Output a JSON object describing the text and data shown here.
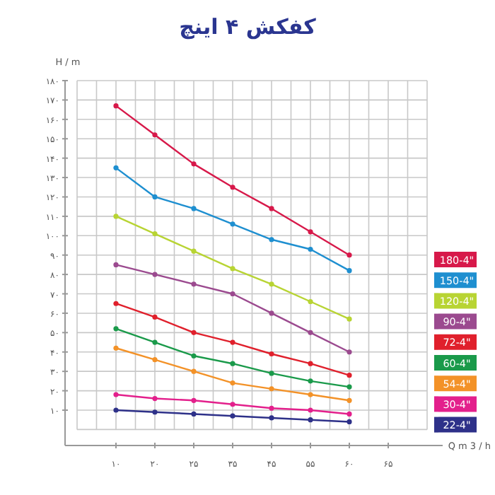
{
  "chart_data": {
    "type": "line",
    "title": "کفکش ۴ اینچ",
    "xlabel": "Q m 3 / h",
    "ylabel": "H / m",
    "categories": [
      "۱۰",
      "۲۰",
      "۲۵",
      "۳۵",
      "۴۵",
      "۵۵",
      "۶۰",
      "۶۵"
    ],
    "ylim": [
      0,
      180
    ],
    "yticks": [
      {
        "value": 10,
        "label": "۱۰"
      },
      {
        "value": 20,
        "label": "۲۰"
      },
      {
        "value": 30,
        "label": "۳۰"
      },
      {
        "value": 40,
        "label": "۴۰"
      },
      {
        "value": 50,
        "label": "۵۰"
      },
      {
        "value": 60,
        "label": "۶۰"
      },
      {
        "value": 70,
        "label": "۷۰"
      },
      {
        "value": 80,
        "label": "۸۰"
      },
      {
        "value": 90,
        "label": "۹۰"
      },
      {
        "value": 100,
        "label": "۱۰۰"
      },
      {
        "value": 110,
        "label": "۱۱۰"
      },
      {
        "value": 120,
        "label": "۱۲۰"
      },
      {
        "value": 130,
        "label": "۱۳۰"
      },
      {
        "value": 140,
        "label": "۱۴۰"
      },
      {
        "value": 150,
        "label": "۱۵۰"
      },
      {
        "value": 160,
        "label": "۱۶۰"
      },
      {
        "value": 170,
        "label": "۱۷۰"
      },
      {
        "value": 180,
        "label": "۱۸۰"
      }
    ],
    "grid": true,
    "legend": "right",
    "marker": "circle",
    "line_style": "solid",
    "series": [
      {
        "name": "180-4\"",
        "color": "#d7194a",
        "values": [
          167,
          152,
          137,
          125,
          114,
          102,
          90,
          null
        ]
      },
      {
        "name": "150-4\"",
        "color": "#1e8fd0",
        "values": [
          135,
          120,
          114,
          106,
          98,
          93,
          82,
          null
        ]
      },
      {
        "name": "120-4\"",
        "color": "#b8d433",
        "values": [
          110,
          101,
          92,
          83,
          75,
          66,
          57,
          null
        ]
      },
      {
        "name": "90-4\"",
        "color": "#9b4a8f",
        "values": [
          85,
          80,
          75,
          70,
          60,
          50,
          40,
          null
        ]
      },
      {
        "name": "72-4\"",
        "color": "#e0202c",
        "values": [
          65,
          58,
          50,
          45,
          39,
          34,
          28,
          null
        ]
      },
      {
        "name": "60-4\"",
        "color": "#1a9a4a",
        "values": [
          52,
          45,
          38,
          34,
          29,
          25,
          22,
          null
        ]
      },
      {
        "name": "54-4\"",
        "color": "#f39228",
        "values": [
          42,
          36,
          30,
          24,
          21,
          18,
          15,
          null
        ]
      },
      {
        "name": "30-4\"",
        "color": "#e3208c",
        "values": [
          18,
          16,
          15,
          13,
          11,
          10,
          8,
          null
        ]
      },
      {
        "name": "22-4\"",
        "color": "#2e3189",
        "values": [
          10,
          9,
          8,
          7,
          6,
          5,
          4,
          null
        ]
      }
    ]
  }
}
